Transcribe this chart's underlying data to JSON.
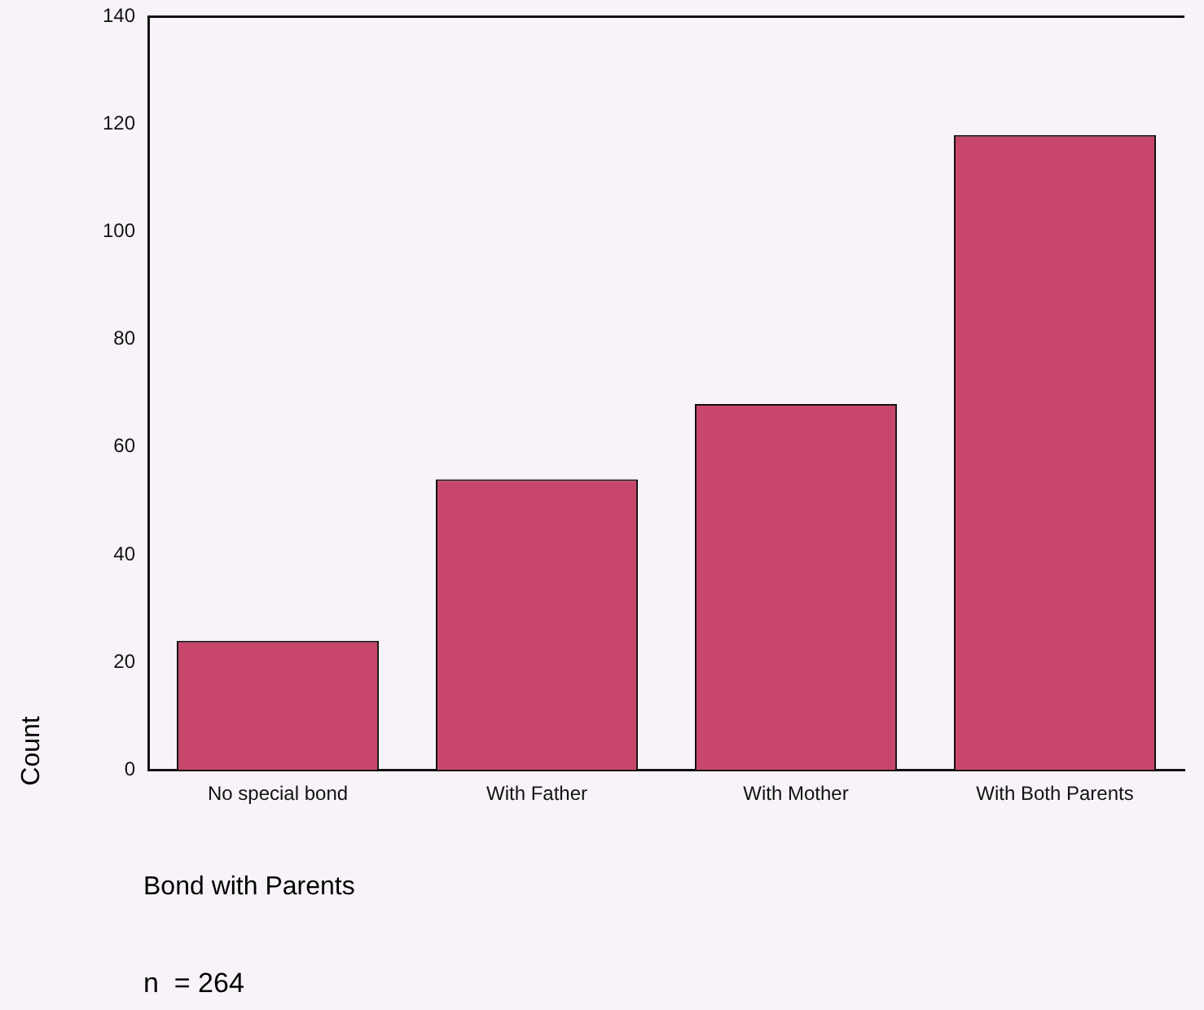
{
  "chart_data": {
    "type": "bar",
    "xlabel": "Bond with Parents",
    "ylabel": "Count",
    "categories": [
      "No special bond",
      "With Father",
      "With Mother",
      "With Both Parents"
    ],
    "values": [
      24,
      54,
      68,
      118
    ],
    "color": "#c8466c",
    "ylim": [
      0,
      140
    ],
    "yticks": [
      0,
      20,
      40,
      60,
      80,
      100,
      120,
      140
    ],
    "grid": false,
    "legend": false,
    "annotations": [
      "n  = 264"
    ]
  }
}
